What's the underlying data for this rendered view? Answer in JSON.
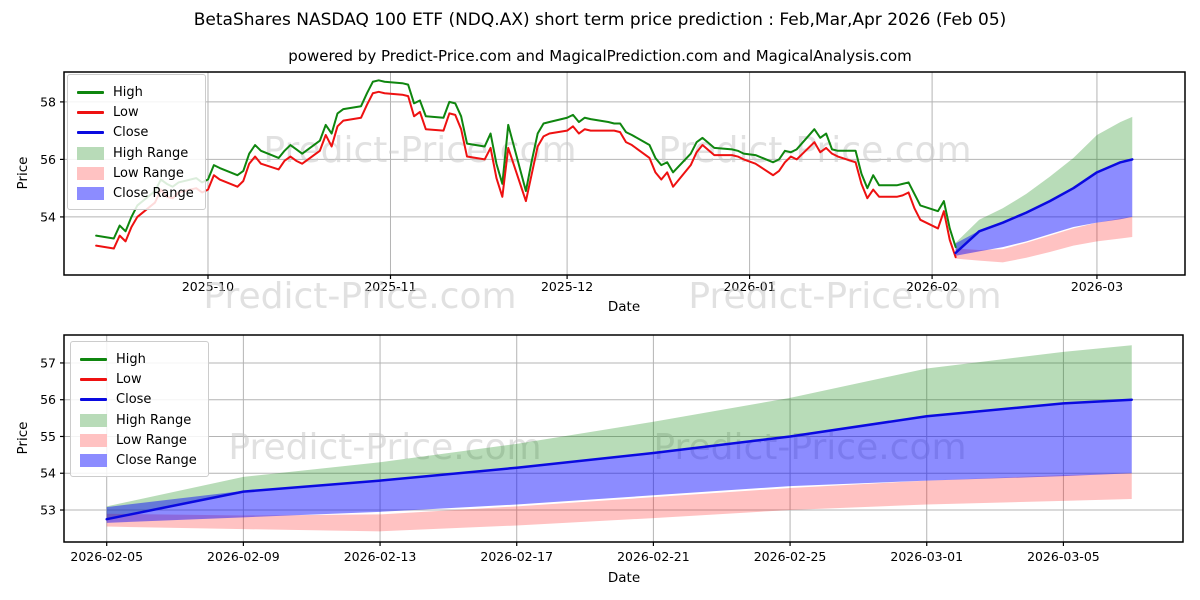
{
  "header": {
    "title": "BetaShares NASDAQ 100 ETF (NDQ.AX) short term price prediction : Feb,Mar,Apr 2026 (Feb 05)",
    "subtitle": "powered by Predict-Price.com and MagicalPrediction.com and MagicalAnalysis.com"
  },
  "watermark_text": "Predict-Price.com",
  "colors": {
    "high_line": "#0f860f",
    "low_line": "#ee1111",
    "close_line": "#0a0ae0",
    "high_fill": "#008000",
    "high_fill_alpha": 0.28,
    "low_fill": "#ff0000",
    "low_fill_alpha": 0.24,
    "close_fill": "#0000ff",
    "close_fill_alpha": 0.45,
    "grid": "#b4b4b4",
    "watermark": "#c9c9c9",
    "axis_text": "#000000"
  },
  "legend": {
    "items": [
      {
        "label": "High",
        "swatch": "line",
        "color_key": "high_line"
      },
      {
        "label": "Low",
        "swatch": "line",
        "color_key": "low_line"
      },
      {
        "label": "Close",
        "swatch": "line",
        "color_key": "close_line"
      },
      {
        "label": "High Range",
        "swatch": "patch",
        "color_key": "high_fill"
      },
      {
        "label": "Low Range",
        "swatch": "patch",
        "color_key": "low_fill"
      },
      {
        "label": "Close Range",
        "swatch": "patch",
        "color_key": "close_fill"
      }
    ]
  },
  "chart_data": [
    {
      "id": "overview",
      "type": "line",
      "xlabel": "Date",
      "ylabel": "Price",
      "grid": true,
      "legend_position": "upper left",
      "xlim": [
        "2025-09-06T13:00Z",
        "2026-03-15T23:00Z"
      ],
      "ylim": [
        51.98,
        59.04
      ],
      "yticks": [
        54,
        56,
        58
      ],
      "xticks": [
        {
          "date": "2025-10-01",
          "label": "2025-10"
        },
        {
          "date": "2025-11-01",
          "label": "2025-11"
        },
        {
          "date": "2025-12-01",
          "label": "2025-12"
        },
        {
          "date": "2026-01-01",
          "label": "2026-01"
        },
        {
          "date": "2026-02-01",
          "label": "2026-02"
        },
        {
          "date": "2026-03-01",
          "label": "2026-03"
        }
      ],
      "history": {
        "dates": [
          "2025-09-12",
          "2025-09-15",
          "2025-09-16",
          "2025-09-17",
          "2025-09-18",
          "2025-09-19",
          "2025-09-22",
          "2025-09-23",
          "2025-09-24",
          "2025-09-25",
          "2025-09-26",
          "2025-09-29",
          "2025-09-30",
          "2025-10-01",
          "2025-10-02",
          "2025-10-03",
          "2025-10-06",
          "2025-10-07",
          "2025-10-08",
          "2025-10-09",
          "2025-10-10",
          "2025-10-13",
          "2025-10-14",
          "2025-10-15",
          "2025-10-16",
          "2025-10-17",
          "2025-10-20",
          "2025-10-21",
          "2025-10-22",
          "2025-10-23",
          "2025-10-24",
          "2025-10-27",
          "2025-10-28",
          "2025-10-29",
          "2025-10-30",
          "2025-10-31",
          "2025-11-03",
          "2025-11-04",
          "2025-11-05",
          "2025-11-06",
          "2025-11-07",
          "2025-11-10",
          "2025-11-11",
          "2025-11-12",
          "2025-11-13",
          "2025-11-14",
          "2025-11-17",
          "2025-11-18",
          "2025-11-19",
          "2025-11-20",
          "2025-11-21",
          "2025-11-24",
          "2025-11-25",
          "2025-11-26",
          "2025-11-27",
          "2025-11-28",
          "2025-12-01",
          "2025-12-02",
          "2025-12-03",
          "2025-12-04",
          "2025-12-05",
          "2025-12-08",
          "2025-12-09",
          "2025-12-10",
          "2025-12-11",
          "2025-12-12",
          "2025-12-15",
          "2025-12-16",
          "2025-12-17",
          "2025-12-18",
          "2025-12-19",
          "2025-12-22",
          "2025-12-23",
          "2025-12-24",
          "2025-12-26",
          "2025-12-29",
          "2025-12-30",
          "2025-12-31",
          "2026-01-02",
          "2026-01-05",
          "2026-01-06",
          "2026-01-07",
          "2026-01-08",
          "2026-01-09",
          "2026-01-12",
          "2026-01-13",
          "2026-01-14",
          "2026-01-15",
          "2026-01-16",
          "2026-01-19",
          "2026-01-20",
          "2026-01-21",
          "2026-01-22",
          "2026-01-23",
          "2026-01-26",
          "2026-01-27",
          "2026-01-28",
          "2026-01-29",
          "2026-01-30",
          "2026-02-02",
          "2026-02-03",
          "2026-02-04",
          "2026-02-05"
        ],
        "high": [
          53.35,
          53.25,
          53.7,
          53.5,
          54.0,
          54.4,
          54.9,
          55.3,
          55.15,
          55.05,
          55.2,
          55.35,
          55.2,
          55.3,
          55.8,
          55.7,
          55.45,
          55.6,
          56.2,
          56.5,
          56.3,
          56.05,
          56.3,
          56.5,
          56.35,
          56.2,
          56.65,
          57.2,
          56.9,
          57.6,
          57.75,
          57.85,
          58.3,
          58.7,
          58.75,
          58.7,
          58.65,
          58.6,
          57.95,
          58.05,
          57.5,
          57.45,
          58.0,
          57.95,
          57.5,
          56.55,
          56.45,
          56.9,
          55.85,
          55.15,
          57.2,
          54.9,
          55.95,
          56.9,
          57.25,
          57.3,
          57.45,
          57.55,
          57.3,
          57.45,
          57.4,
          57.3,
          57.25,
          57.25,
          56.95,
          56.85,
          56.5,
          56.05,
          55.8,
          55.9,
          55.55,
          56.2,
          56.6,
          56.75,
          56.4,
          56.35,
          56.3,
          56.2,
          56.15,
          55.9,
          56.0,
          56.3,
          56.25,
          56.35,
          57.05,
          56.75,
          56.9,
          56.35,
          56.3,
          56.3,
          55.5,
          55.0,
          55.45,
          55.1,
          55.1,
          55.15,
          55.2,
          54.8,
          54.4,
          54.2,
          54.55,
          53.6,
          52.95
        ],
        "low": [
          53.0,
          52.9,
          53.35,
          53.15,
          53.65,
          54.0,
          54.5,
          54.95,
          54.7,
          54.65,
          54.85,
          55.0,
          54.85,
          54.95,
          55.45,
          55.3,
          55.05,
          55.25,
          55.85,
          56.1,
          55.85,
          55.65,
          55.95,
          56.1,
          55.95,
          55.85,
          56.3,
          56.85,
          56.45,
          57.15,
          57.35,
          57.45,
          57.9,
          58.3,
          58.35,
          58.3,
          58.25,
          58.2,
          57.5,
          57.65,
          57.05,
          57.0,
          57.6,
          57.55,
          57.05,
          56.1,
          56.0,
          56.4,
          55.35,
          54.7,
          56.4,
          54.55,
          55.5,
          56.45,
          56.8,
          56.9,
          57.0,
          57.15,
          56.9,
          57.05,
          57.0,
          57.0,
          57.0,
          56.95,
          56.6,
          56.5,
          56.05,
          55.55,
          55.3,
          55.55,
          55.05,
          55.8,
          56.25,
          56.5,
          56.15,
          56.15,
          56.1,
          56.0,
          55.85,
          55.45,
          55.6,
          55.9,
          56.1,
          56.0,
          56.6,
          56.25,
          56.4,
          56.2,
          56.1,
          55.9,
          55.15,
          54.65,
          54.95,
          54.7,
          54.7,
          54.75,
          54.85,
          54.3,
          53.9,
          53.6,
          54.2,
          53.2,
          52.6
        ]
      },
      "prediction": {
        "dates": [
          "2026-02-05",
          "2026-02-09",
          "2026-02-13",
          "2026-02-17",
          "2026-02-21",
          "2026-02-25",
          "2026-03-01",
          "2026-03-05",
          "2026-03-07"
        ],
        "close": [
          52.75,
          53.5,
          53.8,
          54.15,
          54.55,
          55.0,
          55.55,
          55.9,
          56.0
        ],
        "close_max": [
          53.08,
          53.52,
          53.82,
          54.15,
          54.55,
          55.0,
          55.55,
          55.9,
          56.0
        ],
        "close_min": [
          52.65,
          52.8,
          52.95,
          53.15,
          53.4,
          53.65,
          53.8,
          53.92,
          54.0
        ],
        "high_max": [
          53.1,
          53.9,
          54.3,
          54.8,
          55.4,
          56.05,
          56.85,
          57.3,
          57.48
        ],
        "low_max": [
          52.9,
          52.85,
          52.88,
          53.1,
          53.35,
          53.6,
          53.8,
          53.95,
          54.0
        ],
        "low_min": [
          52.55,
          52.48,
          52.42,
          52.58,
          52.78,
          53.0,
          53.15,
          53.25,
          53.3
        ]
      }
    },
    {
      "id": "prediction-detail",
      "type": "line",
      "xlabel": "Date",
      "ylabel": "Price",
      "grid": true,
      "legend_position": "upper left",
      "xlim": [
        "2026-02-03T18:00Z",
        "2026-03-08T12:00Z"
      ],
      "ylim": [
        52.13,
        57.76
      ],
      "yticks": [
        53,
        54,
        55,
        56,
        57
      ],
      "xticks": [
        {
          "date": "2026-02-05",
          "label": "2026-02-05"
        },
        {
          "date": "2026-02-09",
          "label": "2026-02-09"
        },
        {
          "date": "2026-02-13",
          "label": "2026-02-13"
        },
        {
          "date": "2026-02-17",
          "label": "2026-02-17"
        },
        {
          "date": "2026-02-21",
          "label": "2026-02-21"
        },
        {
          "date": "2026-02-25",
          "label": "2026-02-25"
        },
        {
          "date": "2026-03-01",
          "label": "2026-03-01"
        },
        {
          "date": "2026-03-05",
          "label": "2026-03-05"
        }
      ],
      "prediction": {
        "dates": [
          "2026-02-05",
          "2026-02-09",
          "2026-02-13",
          "2026-02-17",
          "2026-02-21",
          "2026-02-25",
          "2026-03-01",
          "2026-03-05",
          "2026-03-07"
        ],
        "close": [
          52.75,
          53.5,
          53.8,
          54.15,
          54.55,
          55.0,
          55.55,
          55.9,
          56.0
        ],
        "close_max": [
          53.08,
          53.52,
          53.82,
          54.15,
          54.55,
          55.0,
          55.55,
          55.9,
          56.0
        ],
        "close_min": [
          52.65,
          52.8,
          52.95,
          53.15,
          53.4,
          53.65,
          53.8,
          53.92,
          54.0
        ],
        "high_max": [
          53.1,
          53.9,
          54.3,
          54.8,
          55.4,
          56.05,
          56.85,
          57.3,
          57.48
        ],
        "low_max": [
          52.9,
          52.85,
          52.88,
          53.1,
          53.35,
          53.6,
          53.8,
          53.95,
          54.0
        ],
        "low_min": [
          52.55,
          52.48,
          52.42,
          52.58,
          52.78,
          53.0,
          53.15,
          53.25,
          53.3
        ]
      }
    }
  ]
}
